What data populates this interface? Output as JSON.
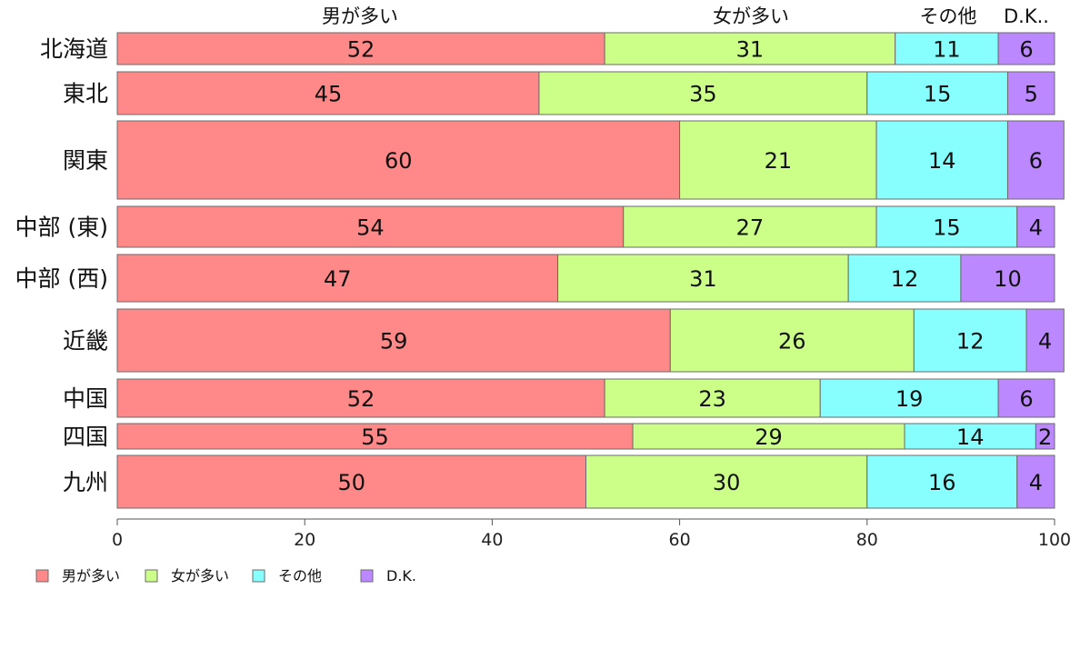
{
  "chart_data": {
    "type": "bar",
    "orientation": "horizontal",
    "stacked": true,
    "normalized_percent": true,
    "categories": [
      "北海道",
      "東北",
      "関東",
      "中部 (東)",
      "中部 (西)",
      "近畿",
      "中国",
      "四国",
      "九州"
    ],
    "column_labels": [
      "男が多い",
      "女が多い",
      "その他",
      "D.K.."
    ],
    "series": [
      {
        "name": "男が多い",
        "color": "#ff8888",
        "values": [
          52,
          45,
          60,
          54,
          47,
          59,
          52,
          55,
          50
        ]
      },
      {
        "name": "女が多い",
        "color": "#ccff88",
        "values": [
          31,
          35,
          21,
          27,
          31,
          26,
          23,
          29,
          30
        ]
      },
      {
        "name": "その他",
        "color": "#88ffff",
        "values": [
          11,
          15,
          14,
          15,
          12,
          12,
          19,
          14,
          16
        ]
      },
      {
        "name": "D.K.",
        "color": "#bb88ff",
        "values": [
          6,
          5,
          6,
          4,
          10,
          4,
          6,
          2,
          4
        ]
      }
    ],
    "xlim": [
      0,
      100
    ],
    "xticks": [
      "0",
      "20",
      "40",
      "60",
      "80",
      "100"
    ],
    "legend_position": "bottom-left",
    "grid": false
  }
}
